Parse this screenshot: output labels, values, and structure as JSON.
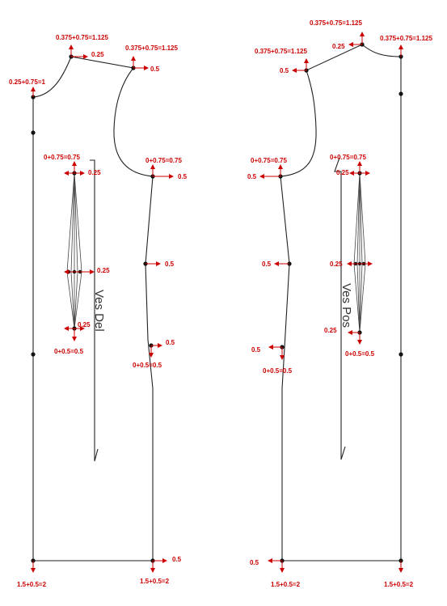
{
  "colors": {
    "annotation": "#cc0000",
    "outline": "#222222",
    "point": "#111111"
  },
  "pieces": {
    "front": {
      "name": "Ves Del"
    },
    "back": {
      "name": "Ves Pos"
    }
  },
  "labels": {
    "front": {
      "neck_front": "0.25+0.75=1",
      "neck_side": "0.375+0.75=1.125",
      "neck_side_offset": "0.25",
      "shoulder_end": "0.375+0.75=1.125",
      "shoulder_end_offset": "0.5",
      "underarm": "0+0.75=0.75",
      "underarm_offset": "0.5",
      "waist_side": "0.5",
      "hip_side": "0.5",
      "hip_side_sum": "0+0.5=0.5",
      "hem_side": "0.5",
      "hem_side_sum": "1.5+0.5=2",
      "hem_center": "1.5+0.5=2",
      "dart_top": "0+0.75=0.75",
      "dart_top_offset": "0.25",
      "dart_mid": "0.25",
      "dart_bottom_offset": "0.25",
      "dart_bottom": "0+0.5=0.5"
    },
    "back": {
      "neck_center": "0.375+0.75=1.125",
      "neck_side": "0.375+0.75=1.125",
      "neck_side_offset": "0.25",
      "shoulder_end": "0.375+0.75=1.125",
      "shoulder_end_offset": "0.5",
      "underarm": "0+0.75=0.75",
      "underarm_offset": "0.5",
      "waist_side": "0.5",
      "hip_side": "0.5",
      "hip_side_sum": "0+0.5=0.5",
      "hem_side": "0.5",
      "hem_side_sum": "1.5+0.5=2",
      "hem_center": "1.5+0.5=2",
      "dart_top": "0+0.75=0.75",
      "dart_top_offset": "0.25",
      "dart_mid": "0.25",
      "dart_bottom_offset": "0.25",
      "dart_bottom": "0+0.5=0.5"
    }
  }
}
